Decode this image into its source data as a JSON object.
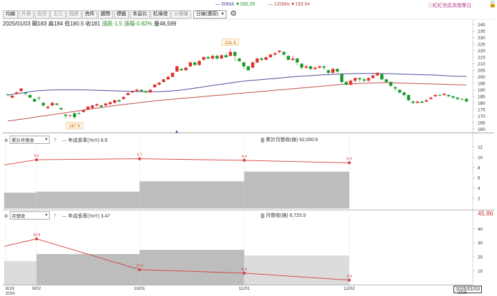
{
  "header": {
    "ma60_label": "60MA",
    "ma60_value": "▼200.29",
    "ma120_label": "120MA",
    "ma120_value": "▼193.64",
    "link": "紅紅色區為營業日"
  },
  "tabs": [
    {
      "label": "均線",
      "active": true
    },
    {
      "label": "外資",
      "active": false
    },
    {
      "label": "投信",
      "active": false
    },
    {
      "label": "主力",
      "active": false
    },
    {
      "label": "融資",
      "active": false
    },
    {
      "label": "売件",
      "active": true
    },
    {
      "label": "趨勢",
      "active": true
    },
    {
      "label": "標籤",
      "active": true
    },
    {
      "label": "本益比",
      "active": true
    },
    {
      "label": "紅綠燈",
      "active": true
    },
    {
      "label": "分價量",
      "active": false
    }
  ],
  "period_select": {
    "value": "日線(還原)"
  },
  "ohlc": {
    "date": "2025/01/03",
    "open_label": "開",
    "open": "183",
    "high_label": "高",
    "high": "184",
    "low_label": "低",
    "low": "180.5",
    "close_label": "收",
    "close": "181",
    "change_label": "漲跌",
    "change": "-1.5",
    "pct_label": "漲幅",
    "pct": "-0.82%",
    "vol_label": "量",
    "vol": "46,599"
  },
  "main_chart": {
    "y_ticks": [
      160,
      165,
      170,
      175,
      180,
      185,
      190,
      195,
      200,
      205,
      210,
      215,
      220,
      225,
      230,
      235,
      240
    ],
    "y_range": [
      157,
      243
    ],
    "high_marker": "221.5",
    "low_marker": "167.5"
  },
  "panel1": {
    "select": "累計月營收",
    "help": "?",
    "legend1": "年成長率(YoY)",
    "legend1_value": "8.9",
    "legend2": "累計月營收(億)",
    "legend2_value": "62,050.6",
    "y_ticks": [
      2,
      4,
      6,
      8,
      10,
      12
    ],
    "y_range": [
      0,
      13
    ],
    "yoy_points": [
      {
        "x": 9.5,
        "label": "9.5",
        "value": 9.5
      },
      {
        "x": 39.7,
        "label": "9.7",
        "value": 9.7
      },
      {
        "x": 70.4,
        "label": "9.4",
        "value": 9.4
      },
      {
        "x": 101.2,
        "label": "8.9",
        "value": 8.9
      }
    ]
  },
  "panel2": {
    "select": "月營收",
    "help": "?",
    "legend1": "年成長率(YoY)",
    "legend1_value": "3.47",
    "legend2": "月營收(億)",
    "legend2_value": "6,725.9",
    "right_value": "45.86",
    "y_ticks": [
      10,
      20,
      30,
      40
    ],
    "y_range": [
      0,
      47
    ],
    "yoy_points": [
      {
        "x": 9.5,
        "label": "32.8",
        "value": 32.8
      },
      {
        "x": 39.7,
        "label": "10.9",
        "value": 10.9
      },
      {
        "x": 70.4,
        "label": "8.4",
        "value": 8.4
      },
      {
        "x": 101.2,
        "label": "3.5",
        "value": 3.5
      }
    ]
  },
  "x_axis": {
    "labels": [
      {
        "text": "8/19",
        "sub": "2024"
      },
      {
        "text": "9/02",
        "sub": ""
      },
      {
        "text": "10/01",
        "sub": ""
      },
      {
        "text": "11/01",
        "sub": ""
      },
      {
        "text": "12/02",
        "sub": ""
      }
    ],
    "current": "2025/01/03",
    "current_sub": "2025"
  },
  "colors": {
    "up": "#e0302a",
    "down": "#1a9a2a",
    "ma60": "#4a4a9a",
    "ma120": "#c24a4a",
    "yoy": "#d43a3a",
    "bar_dark": "#bdbdbd",
    "bar_light": "#dcdcdc"
  },
  "chart_data": {
    "type": "line",
    "candles": [
      [
        186.5,
        186,
        187,
        185
      ],
      [
        184,
        185.5,
        186,
        183.5
      ],
      [
        187,
        188,
        189,
        186.5
      ],
      [
        189,
        191,
        191.5,
        188.5
      ],
      [
        188,
        187,
        188.5,
        185.5
      ],
      [
        186,
        184,
        186.5,
        183.5
      ],
      [
        183,
        181,
        183.5,
        180.5
      ],
      [
        184,
        183.5,
        185,
        182
      ],
      [
        180,
        178,
        180.5,
        177
      ],
      [
        176,
        177,
        178,
        175
      ],
      [
        178,
        180,
        181,
        177.5
      ],
      [
        179.5,
        178.5,
        180,
        178
      ],
      [
        176,
        175,
        176.5,
        174.5
      ],
      [
        171,
        170,
        171.5,
        168
      ],
      [
        170,
        170.5,
        171,
        169
      ],
      [
        172,
        169,
        172.5,
        167.5
      ],
      [
        172,
        171.5,
        173,
        171
      ],
      [
        173,
        174.5,
        175,
        172.5
      ],
      [
        175,
        177,
        177.5,
        174.5
      ],
      [
        176,
        178,
        178.5,
        175.5
      ],
      [
        178,
        179,
        179.5,
        177
      ],
      [
        178,
        177,
        178.5,
        176
      ],
      [
        178,
        179.5,
        180,
        177.5
      ],
      [
        179,
        180.5,
        181,
        178.5
      ],
      [
        180,
        182,
        182.5,
        179.5
      ],
      [
        182,
        181,
        182.5,
        180.5
      ],
      [
        183,
        184.5,
        185,
        182.5
      ],
      [
        186,
        187.5,
        188,
        185.5
      ],
      [
        188,
        189,
        189.5,
        187.5
      ],
      [
        189,
        190,
        191,
        188.5
      ],
      [
        190,
        189,
        190.5,
        188.5
      ],
      [
        189,
        188,
        189.5,
        187.5
      ],
      [
        188,
        190,
        190.5,
        187.5
      ],
      [
        192,
        194,
        194.5,
        191.5
      ],
      [
        194,
        195.5,
        196,
        193.5
      ],
      [
        196,
        198,
        198.5,
        195.5
      ],
      [
        198,
        200,
        200.5,
        197.5
      ],
      [
        200,
        203,
        203.5,
        199.5
      ],
      [
        204,
        208,
        208.5,
        203.5
      ],
      [
        206,
        205,
        206.5,
        204.5
      ],
      [
        205,
        207,
        207.5,
        204.5
      ],
      [
        208,
        211,
        211.5,
        207.5
      ],
      [
        211,
        209,
        211.5,
        208.5
      ],
      [
        209,
        212,
        213,
        208.5
      ],
      [
        213,
        215,
        216,
        212.5
      ],
      [
        215,
        214,
        216,
        213.5
      ],
      [
        214,
        216,
        217,
        213
      ],
      [
        216,
        214,
        217,
        213
      ],
      [
        214,
        216.5,
        217,
        213.5
      ],
      [
        216.5,
        215,
        218,
        214.5
      ],
      [
        216,
        219,
        221.5,
        215.5
      ],
      [
        219,
        216,
        219.5,
        212
      ],
      [
        214,
        212,
        214.5,
        211.5
      ],
      [
        211,
        208,
        211.5,
        206
      ],
      [
        208,
        205,
        208.5,
        204.5
      ],
      [
        207,
        211,
        211.5,
        206.5
      ],
      [
        211,
        214,
        214.5,
        210.5
      ],
      [
        214,
        213,
        215,
        212
      ],
      [
        213,
        215,
        215.5,
        212.5
      ],
      [
        215,
        217,
        217.5,
        214.5
      ],
      [
        217,
        218,
        219,
        216
      ],
      [
        219,
        220,
        220.5,
        218
      ],
      [
        219,
        217,
        219.5,
        216
      ],
      [
        216,
        213,
        216.5,
        212.5
      ],
      [
        213,
        214,
        216,
        212
      ],
      [
        214,
        211,
        214.5,
        209
      ],
      [
        210,
        207,
        210.5,
        205.5
      ],
      [
        207,
        208,
        209,
        206
      ],
      [
        208,
        206,
        208.5,
        205
      ],
      [
        206,
        207,
        208,
        205
      ],
      [
        207,
        208,
        208.5,
        206
      ],
      [
        208,
        207,
        208.5,
        205
      ],
      [
        205,
        203,
        205.5,
        202
      ],
      [
        203,
        206,
        207,
        202.5
      ],
      [
        206,
        204,
        206.5,
        203
      ],
      [
        202,
        196,
        202.5,
        195
      ],
      [
        196,
        194,
        197,
        193
      ],
      [
        194,
        197,
        198,
        193
      ],
      [
        197,
        199,
        199.5,
        195.5
      ],
      [
        199,
        198,
        199.5,
        196
      ],
      [
        198,
        197,
        199,
        196
      ],
      [
        197,
        199,
        199.5,
        196
      ],
      [
        199,
        201,
        201.5,
        198.5
      ],
      [
        201,
        203,
        203.5,
        200.5
      ],
      [
        202,
        198,
        202.5,
        197
      ],
      [
        198,
        196,
        198.5,
        195
      ],
      [
        196,
        193,
        196.5,
        192.5
      ],
      [
        192,
        191,
        192.5,
        189
      ],
      [
        190,
        188,
        190.5,
        187
      ],
      [
        188,
        186,
        188.5,
        185
      ],
      [
        186,
        182,
        186.5,
        181
      ],
      [
        181,
        180,
        182,
        179
      ],
      [
        180,
        181,
        181.5,
        179.5
      ],
      [
        181,
        180,
        181.5,
        180
      ],
      [
        181,
        182,
        183,
        180.5
      ],
      [
        183,
        184,
        185,
        182.5
      ],
      [
        185,
        186,
        186.5,
        184.5
      ],
      [
        186,
        185.5,
        186.5,
        185
      ],
      [
        186,
        187,
        187.5,
        185.5
      ],
      [
        186,
        185,
        186.5,
        184.5
      ],
      [
        185,
        184,
        185.5,
        183
      ],
      [
        184,
        183,
        184.5,
        182
      ],
      [
        183,
        182.5,
        183.5,
        182
      ],
      [
        183,
        181,
        184,
        180.5
      ]
    ],
    "ma60": [
      186,
      186.5,
      187,
      187.5,
      188,
      188.5,
      189,
      189.3,
      189.5,
      189.7,
      189.8,
      189.9,
      190,
      190,
      190,
      190,
      190,
      189.9,
      189.8,
      189.7,
      189.6,
      189.5,
      189.4,
      189.3,
      189.2,
      189.1,
      189,
      188.9,
      188.8,
      188.7,
      188.6,
      188.5,
      188.5,
      188.5,
      188.6,
      188.8,
      189,
      189.3,
      189.6,
      190,
      190.5,
      191,
      191.5,
      192,
      192.5,
      193,
      193.5,
      194,
      194.5,
      195,
      195.5,
      196,
      196.4,
      196.8,
      197.1,
      197.4,
      197.7,
      198,
      198.3,
      198.6,
      198.9,
      199.2,
      199.5,
      199.8,
      200.1,
      200.4,
      200.6,
      200.8,
      201,
      201.2,
      201.4,
      201.6,
      201.8,
      202,
      202.1,
      202.2,
      202.3,
      202.4,
      202.5,
      202.5,
      202.5,
      202.5,
      202.5,
      202.5,
      202.4,
      202.3,
      202.2,
      202.1,
      202,
      201.9,
      201.8,
      201.7,
      201.6,
      201.5,
      201.4,
      201.3,
      201.1,
      200.9,
      200.7,
      200.5,
      200.4,
      200.3,
      200.29
    ],
    "ma120": [
      166,
      166.5,
      167,
      167.5,
      168,
      168.5,
      169,
      169.5,
      170,
      170.5,
      171,
      171.5,
      172,
      172.5,
      173,
      173.5,
      174,
      174.5,
      175,
      175.5,
      176,
      176.5,
      177,
      177.5,
      178,
      178.4,
      178.8,
      179.2,
      179.6,
      180,
      180.4,
      180.8,
      181.2,
      181.6,
      182,
      182.3,
      182.6,
      182.9,
      183.2,
      183.5,
      183.8,
      184.1,
      184.4,
      184.7,
      185,
      185.3,
      185.6,
      185.9,
      186.2,
      186.5,
      186.8,
      187.1,
      187.4,
      187.7,
      188,
      188.3,
      188.6,
      188.9,
      189.2,
      189.5,
      189.8,
      190.1,
      190.4,
      190.7,
      191,
      191.3,
      191.6,
      191.9,
      192.2,
      192.5,
      192.8,
      193.1,
      193.4,
      193.7,
      194,
      194.2,
      194.4,
      194.6,
      194.8,
      195,
      195.1,
      195.2,
      195.3,
      195.4,
      195.5,
      195.4,
      195.3,
      195.2,
      195.1,
      195,
      194.9,
      194.8,
      194.7,
      194.6,
      194.5,
      194.4,
      194.3,
      194.2,
      194.1,
      194,
      193.9,
      193.8,
      193.64
    ]
  }
}
